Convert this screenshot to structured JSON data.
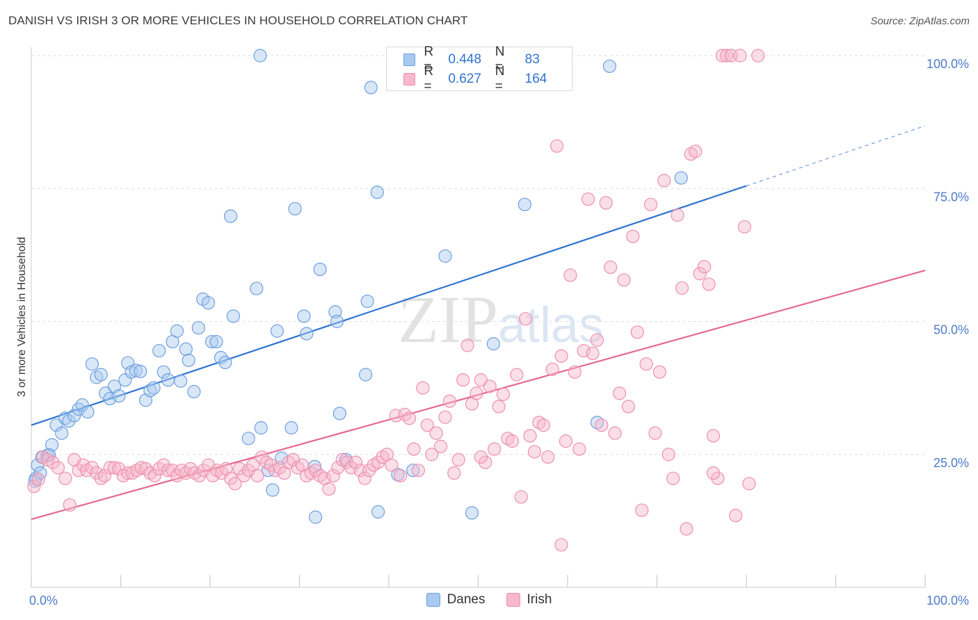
{
  "title": "DANISH VS IRISH 3 OR MORE VEHICLES IN HOUSEHOLD CORRELATION CHART",
  "source": "Source: ZipAtlas.com",
  "watermark": "ZIPatlas",
  "colors": {
    "danes_fill": "#a9c9f0",
    "danes_stroke": "#6d9fe0",
    "danes_line": "#2f73d0",
    "irish_fill": "#f7b8cc",
    "irish_stroke": "#ee8fae",
    "irish_line": "#e4688f",
    "tick_label": "#4b7cc9",
    "grid": "#dddddd"
  },
  "legend": {
    "danes": {
      "r_label": "R =",
      "r_value": "0.448",
      "n_label": "N =",
      "n_value": "83"
    },
    "irish": {
      "r_label": "R =",
      "r_value": "0.627",
      "n_label": "N =",
      "n_value": "164"
    }
  },
  "bottom_legend": {
    "danes": "Danes",
    "irish": "Irish"
  },
  "chart_data": {
    "type": "scatter",
    "title": "DANISH VS IRISH 3 OR MORE VEHICLES IN HOUSEHOLD CORRELATION CHART",
    "xlabel": "",
    "ylabel": "3 or more Vehicles in Household",
    "xlim": [
      0,
      100
    ],
    "ylim": [
      0,
      100
    ],
    "x_tick_labels": [
      "0.0%",
      "100.0%"
    ],
    "y_ticks": [
      25,
      50,
      75,
      100
    ],
    "y_tick_labels": [
      "25.0%",
      "50.0%",
      "75.0%",
      "100.0%"
    ],
    "grid": true,
    "legend_position": "top-center",
    "series": [
      {
        "name": "Danes",
        "r": 0.448,
        "n": 83,
        "trend": {
          "x0": 0,
          "y0": 30.5,
          "x1": 80,
          "y1": 75.5,
          "dashed_to_x": 100,
          "dashed_to_y": 86.8
        },
        "points": [
          [
            0.5,
            20.5
          ],
          [
            0.7,
            23.0
          ],
          [
            1.2,
            24.5
          ],
          [
            1.8,
            24.8
          ],
          [
            2.3,
            26.8
          ],
          [
            2.8,
            30.5
          ],
          [
            3.4,
            29.0
          ],
          [
            3.8,
            31.8
          ],
          [
            4.2,
            31.3
          ],
          [
            4.8,
            32.3
          ],
          [
            5.3,
            33.5
          ],
          [
            5.7,
            34.3
          ],
          [
            6.3,
            33.0
          ],
          [
            6.8,
            42.0
          ],
          [
            7.3,
            39.5
          ],
          [
            7.8,
            40.0
          ],
          [
            8.3,
            36.5
          ],
          [
            8.8,
            35.5
          ],
          [
            9.3,
            37.8
          ],
          [
            9.8,
            36.0
          ],
          [
            10.5,
            39.0
          ],
          [
            10.8,
            42.2
          ],
          [
            11.2,
            40.5
          ],
          [
            11.7,
            40.8
          ],
          [
            12.2,
            40.6
          ],
          [
            12.8,
            35.2
          ],
          [
            13.3,
            37.0
          ],
          [
            13.7,
            37.5
          ],
          [
            14.3,
            44.5
          ],
          [
            14.8,
            40.5
          ],
          [
            15.3,
            39.0
          ],
          [
            15.8,
            46.2
          ],
          [
            16.3,
            48.2
          ],
          [
            16.7,
            38.8
          ],
          [
            17.3,
            44.8
          ],
          [
            17.6,
            42.7
          ],
          [
            18.2,
            36.8
          ],
          [
            18.7,
            48.8
          ],
          [
            19.2,
            54.2
          ],
          [
            19.8,
            53.5
          ],
          [
            20.2,
            46.2
          ],
          [
            20.7,
            46.2
          ],
          [
            21.2,
            43.2
          ],
          [
            21.7,
            42.3
          ],
          [
            22.3,
            69.8
          ],
          [
            22.6,
            51.0
          ],
          [
            24.3,
            28.0
          ],
          [
            25.2,
            56.2
          ],
          [
            25.7,
            30.0
          ],
          [
            25.6,
            100.0
          ],
          [
            26.5,
            22.0
          ],
          [
            27.0,
            18.3
          ],
          [
            27.5,
            48.2
          ],
          [
            28.0,
            24.3
          ],
          [
            29.1,
            30.0
          ],
          [
            29.5,
            71.2
          ],
          [
            30.5,
            51.0
          ],
          [
            30.8,
            47.7
          ],
          [
            31.7,
            22.7
          ],
          [
            31.8,
            13.2
          ],
          [
            32.3,
            59.8
          ],
          [
            34.0,
            51.8
          ],
          [
            34.2,
            50.0
          ],
          [
            34.5,
            32.7
          ],
          [
            35.2,
            24.0
          ],
          [
            37.4,
            40.0
          ],
          [
            37.6,
            53.8
          ],
          [
            38.0,
            94.0
          ],
          [
            38.7,
            74.3
          ],
          [
            38.8,
            14.2
          ],
          [
            41.0,
            21.2
          ],
          [
            42.7,
            22.0
          ],
          [
            46.3,
            62.3
          ],
          [
            49.3,
            14.0
          ],
          [
            49.3,
            100.0
          ],
          [
            51.7,
            45.8
          ],
          [
            55.2,
            72.0
          ],
          [
            63.3,
            31.0
          ],
          [
            64.7,
            98.0
          ],
          [
            72.7,
            77.0
          ],
          [
            0.4,
            20.0
          ],
          [
            1.0,
            21.5
          ],
          [
            2.0,
            24.9
          ]
        ]
      },
      {
        "name": "Irish",
        "r": 0.627,
        "n": 164,
        "trend": {
          "x0": 0,
          "y0": 12.8,
          "x1": 100,
          "y1": 59.6
        },
        "points": [
          [
            0.3,
            19.0
          ],
          [
            0.8,
            20.3
          ],
          [
            1.3,
            24.5
          ],
          [
            1.8,
            24.0
          ],
          [
            2.4,
            23.5
          ],
          [
            3.0,
            22.5
          ],
          [
            3.8,
            20.5
          ],
          [
            4.3,
            15.5
          ],
          [
            4.8,
            24.0
          ],
          [
            5.3,
            22.0
          ],
          [
            5.8,
            23.0
          ],
          [
            6.2,
            22.0
          ],
          [
            6.8,
            22.5
          ],
          [
            7.3,
            21.5
          ],
          [
            7.8,
            20.5
          ],
          [
            8.2,
            21.0
          ],
          [
            8.8,
            22.5
          ],
          [
            9.3,
            22.5
          ],
          [
            9.8,
            22.3
          ],
          [
            10.3,
            21.0
          ],
          [
            10.8,
            21.5
          ],
          [
            11.3,
            21.5
          ],
          [
            11.8,
            22.0
          ],
          [
            12.3,
            22.5
          ],
          [
            12.8,
            22.3
          ],
          [
            13.3,
            21.5
          ],
          [
            13.8,
            21.0
          ],
          [
            14.3,
            22.3
          ],
          [
            14.8,
            23.0
          ],
          [
            15.3,
            22.0
          ],
          [
            15.8,
            22.0
          ],
          [
            16.3,
            21.0
          ],
          [
            16.8,
            22.0
          ],
          [
            17.3,
            21.5
          ],
          [
            17.8,
            22.3
          ],
          [
            18.3,
            21.5
          ],
          [
            18.8,
            21.0
          ],
          [
            19.3,
            22.0
          ],
          [
            19.8,
            23.0
          ],
          [
            20.3,
            21.0
          ],
          [
            20.8,
            22.0
          ],
          [
            21.3,
            21.5
          ],
          [
            21.8,
            22.3
          ],
          [
            22.3,
            20.5
          ],
          [
            22.8,
            19.5
          ],
          [
            23.3,
            22.3
          ],
          [
            23.8,
            21.0
          ],
          [
            24.3,
            22.0
          ],
          [
            24.8,
            23.0
          ],
          [
            25.3,
            21.0
          ],
          [
            25.8,
            24.5
          ],
          [
            26.3,
            23.5
          ],
          [
            26.8,
            23.0
          ],
          [
            27.3,
            22.0
          ],
          [
            27.8,
            22.5
          ],
          [
            28.3,
            21.5
          ],
          [
            28.8,
            23.5
          ],
          [
            29.3,
            24.0
          ],
          [
            29.8,
            22.5
          ],
          [
            30.3,
            23.0
          ],
          [
            30.8,
            21.0
          ],
          [
            31.3,
            21.5
          ],
          [
            31.8,
            22.0
          ],
          [
            32.3,
            21.0
          ],
          [
            32.8,
            20.5
          ],
          [
            33.3,
            18.5
          ],
          [
            33.8,
            21.0
          ],
          [
            34.3,
            22.5
          ],
          [
            34.8,
            24.0
          ],
          [
            35.3,
            23.5
          ],
          [
            35.8,
            22.5
          ],
          [
            36.3,
            23.5
          ],
          [
            36.8,
            22.0
          ],
          [
            37.3,
            20.5
          ],
          [
            37.8,
            22.0
          ],
          [
            38.3,
            23.0
          ],
          [
            38.8,
            23.5
          ],
          [
            39.3,
            24.5
          ],
          [
            39.8,
            25.0
          ],
          [
            40.3,
            23.0
          ],
          [
            40.8,
            32.3
          ],
          [
            41.3,
            21.0
          ],
          [
            41.8,
            32.5
          ],
          [
            42.3,
            31.8
          ],
          [
            42.8,
            26.0
          ],
          [
            43.3,
            22.0
          ],
          [
            43.8,
            37.5
          ],
          [
            44.3,
            30.5
          ],
          [
            44.8,
            25.0
          ],
          [
            45.3,
            29.0
          ],
          [
            45.8,
            26.5
          ],
          [
            46.3,
            32.0
          ],
          [
            46.8,
            35.0
          ],
          [
            47.3,
            21.5
          ],
          [
            47.8,
            24.0
          ],
          [
            48.3,
            39.0
          ],
          [
            48.8,
            45.5
          ],
          [
            49.3,
            34.5
          ],
          [
            49.8,
            36.5
          ],
          [
            50.3,
            39.0
          ],
          [
            50.8,
            23.5
          ],
          [
            51.3,
            37.8
          ],
          [
            51.8,
            26.0
          ],
          [
            52.3,
            34.0
          ],
          [
            52.8,
            36.3
          ],
          [
            53.3,
            28.0
          ],
          [
            53.8,
            27.5
          ],
          [
            54.3,
            40.0
          ],
          [
            54.8,
            17.0
          ],
          [
            55.3,
            50.5
          ],
          [
            55.8,
            28.5
          ],
          [
            56.3,
            25.5
          ],
          [
            56.8,
            31.0
          ],
          [
            57.3,
            30.5
          ],
          [
            57.8,
            24.5
          ],
          [
            58.3,
            41.0
          ],
          [
            58.8,
            83.0
          ],
          [
            59.3,
            43.5
          ],
          [
            59.8,
            27.5
          ],
          [
            60.3,
            58.7
          ],
          [
            60.8,
            40.5
          ],
          [
            61.3,
            26.0
          ],
          [
            61.8,
            44.5
          ],
          [
            62.3,
            73.0
          ],
          [
            62.8,
            44.0
          ],
          [
            63.3,
            46.5
          ],
          [
            63.8,
            30.5
          ],
          [
            64.3,
            72.3
          ],
          [
            64.8,
            60.2
          ],
          [
            65.3,
            29.0
          ],
          [
            65.8,
            36.5
          ],
          [
            66.3,
            57.8
          ],
          [
            66.8,
            34.0
          ],
          [
            67.3,
            66.0
          ],
          [
            67.8,
            48.0
          ],
          [
            68.3,
            14.5
          ],
          [
            68.8,
            42.0
          ],
          [
            69.3,
            72.0
          ],
          [
            69.8,
            29.0
          ],
          [
            70.3,
            40.5
          ],
          [
            70.8,
            76.5
          ],
          [
            71.3,
            25.0
          ],
          [
            71.8,
            20.5
          ],
          [
            72.3,
            70.0
          ],
          [
            72.8,
            56.3
          ],
          [
            73.3,
            11.0
          ],
          [
            73.8,
            81.5
          ],
          [
            74.3,
            82.0
          ],
          [
            74.8,
            59.0
          ],
          [
            75.3,
            60.3
          ],
          [
            75.8,
            57.0
          ],
          [
            76.3,
            28.5
          ],
          [
            76.8,
            20.5
          ],
          [
            77.3,
            100.0
          ],
          [
            77.8,
            100.0
          ],
          [
            78.3,
            100.0
          ],
          [
            78.8,
            13.5
          ],
          [
            79.3,
            100.0
          ],
          [
            79.8,
            67.8
          ],
          [
            80.3,
            19.5
          ],
          [
            81.3,
            100.0
          ],
          [
            50.3,
            24.5
          ],
          [
            59.3,
            8.0
          ],
          [
            76.3,
            21.5
          ]
        ]
      }
    ]
  }
}
